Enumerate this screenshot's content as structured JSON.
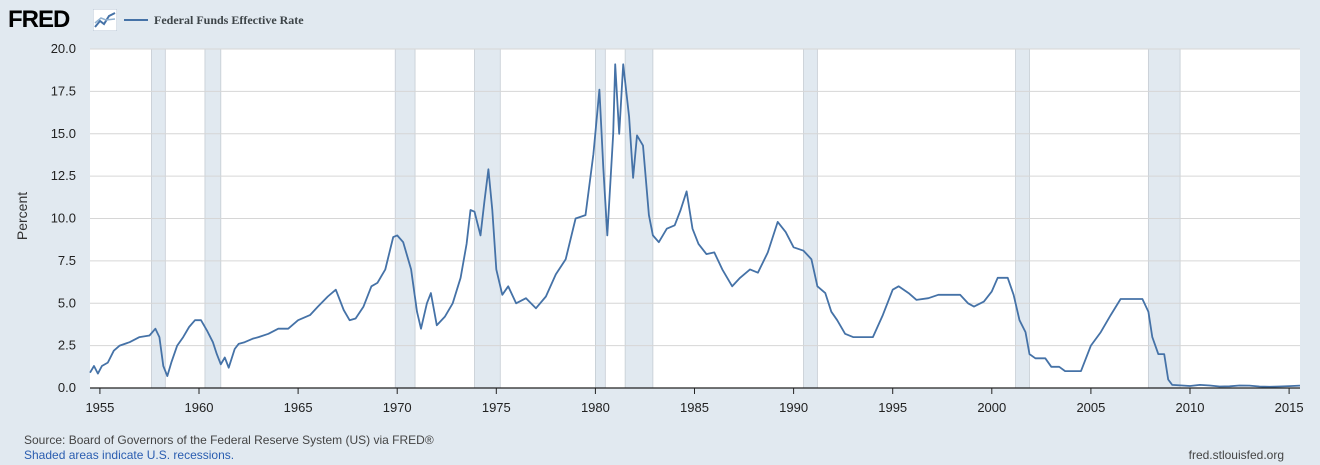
{
  "header": {
    "logo_text": "FRED",
    "logo_icon": "line-chart-icon",
    "series_label": "Federal Funds Effective Rate",
    "series_color": "#4572a7"
  },
  "footer": {
    "source": "Source: Board of Governors of the Federal Reserve System (US) via FRED®",
    "note": "Shaded areas indicate U.S. recessions.",
    "site": "fred.stlouisfed.org"
  },
  "colors": {
    "background": "#e1e9f0",
    "plot_background": "#ffffff",
    "recession_shade": "#e1e9f0",
    "line": "#4572a7"
  },
  "chart_data": {
    "type": "line",
    "title": "",
    "xlabel": "",
    "ylabel": "Percent",
    "xlim": [
      1954.5,
      2015.55
    ],
    "ylim": [
      0,
      20
    ],
    "grid": true,
    "legend_position": "top-left",
    "x_ticks": [
      1955,
      1960,
      1965,
      1970,
      1975,
      1980,
      1985,
      1990,
      1995,
      2000,
      2005,
      2010,
      2015
    ],
    "y_ticks": [
      "0.0",
      "2.5",
      "5.0",
      "7.5",
      "10.0",
      "12.5",
      "15.0",
      "17.5",
      "20.0"
    ],
    "recessions": [
      [
        1957.6,
        1958.3
      ],
      [
        1960.3,
        1961.1
      ],
      [
        1969.9,
        1970.9
      ],
      [
        1973.9,
        1975.2
      ],
      [
        1980.0,
        1980.5
      ],
      [
        1981.5,
        1982.9
      ],
      [
        1990.5,
        1991.2
      ],
      [
        2001.2,
        2001.9
      ],
      [
        2007.9,
        2009.5
      ]
    ],
    "series": [
      {
        "name": "Federal Funds Effective Rate",
        "points": [
          [
            1954.5,
            0.9
          ],
          [
            1954.7,
            1.3
          ],
          [
            1954.9,
            0.85
          ],
          [
            1955.1,
            1.3
          ],
          [
            1955.4,
            1.5
          ],
          [
            1955.7,
            2.2
          ],
          [
            1956.0,
            2.5
          ],
          [
            1956.5,
            2.7
          ],
          [
            1957.0,
            3.0
          ],
          [
            1957.5,
            3.1
          ],
          [
            1957.8,
            3.5
          ],
          [
            1958.0,
            3.0
          ],
          [
            1958.2,
            1.3
          ],
          [
            1958.4,
            0.7
          ],
          [
            1958.6,
            1.5
          ],
          [
            1958.9,
            2.5
          ],
          [
            1959.2,
            3.0
          ],
          [
            1959.5,
            3.6
          ],
          [
            1959.8,
            4.0
          ],
          [
            1960.1,
            4.0
          ],
          [
            1960.4,
            3.4
          ],
          [
            1960.7,
            2.7
          ],
          [
            1960.9,
            2.0
          ],
          [
            1961.1,
            1.4
          ],
          [
            1961.3,
            1.8
          ],
          [
            1961.5,
            1.2
          ],
          [
            1961.8,
            2.3
          ],
          [
            1962.0,
            2.6
          ],
          [
            1962.3,
            2.7
          ],
          [
            1962.7,
            2.9
          ],
          [
            1963.0,
            3.0
          ],
          [
            1963.5,
            3.2
          ],
          [
            1964.0,
            3.5
          ],
          [
            1964.5,
            3.5
          ],
          [
            1965.0,
            4.0
          ],
          [
            1965.6,
            4.3
          ],
          [
            1966.0,
            4.8
          ],
          [
            1966.5,
            5.4
          ],
          [
            1966.9,
            5.8
          ],
          [
            1967.3,
            4.6
          ],
          [
            1967.6,
            4.0
          ],
          [
            1967.9,
            4.1
          ],
          [
            1968.3,
            4.8
          ],
          [
            1968.7,
            6.0
          ],
          [
            1969.0,
            6.2
          ],
          [
            1969.4,
            7.0
          ],
          [
            1969.8,
            8.9
          ],
          [
            1970.0,
            9.0
          ],
          [
            1970.3,
            8.6
          ],
          [
            1970.7,
            7.0
          ],
          [
            1971.0,
            4.5
          ],
          [
            1971.2,
            3.5
          ],
          [
            1971.5,
            5.0
          ],
          [
            1971.7,
            5.6
          ],
          [
            1972.0,
            3.7
          ],
          [
            1972.4,
            4.2
          ],
          [
            1972.8,
            5.0
          ],
          [
            1973.2,
            6.5
          ],
          [
            1973.5,
            8.5
          ],
          [
            1973.7,
            10.5
          ],
          [
            1973.9,
            10.4
          ],
          [
            1974.2,
            9.0
          ],
          [
            1974.4,
            11.0
          ],
          [
            1974.6,
            12.9
          ],
          [
            1974.8,
            10.5
          ],
          [
            1975.0,
            7.0
          ],
          [
            1975.3,
            5.5
          ],
          [
            1975.6,
            6.0
          ],
          [
            1976.0,
            5.0
          ],
          [
            1976.5,
            5.3
          ],
          [
            1977.0,
            4.7
          ],
          [
            1977.5,
            5.4
          ],
          [
            1978.0,
            6.7
          ],
          [
            1978.5,
            7.6
          ],
          [
            1979.0,
            10.0
          ],
          [
            1979.5,
            10.2
          ],
          [
            1979.9,
            13.8
          ],
          [
            1980.2,
            17.6
          ],
          [
            1980.4,
            13.0
          ],
          [
            1980.6,
            9.0
          ],
          [
            1980.9,
            15.0
          ],
          [
            1981.0,
            19.1
          ],
          [
            1981.2,
            15.0
          ],
          [
            1981.4,
            19.1
          ],
          [
            1981.7,
            16.0
          ],
          [
            1981.9,
            12.4
          ],
          [
            1982.1,
            14.9
          ],
          [
            1982.4,
            14.3
          ],
          [
            1982.7,
            10.2
          ],
          [
            1982.9,
            9.0
          ],
          [
            1983.2,
            8.6
          ],
          [
            1983.6,
            9.4
          ],
          [
            1984.0,
            9.6
          ],
          [
            1984.3,
            10.5
          ],
          [
            1984.6,
            11.6
          ],
          [
            1984.9,
            9.4
          ],
          [
            1985.2,
            8.5
          ],
          [
            1985.6,
            7.9
          ],
          [
            1986.0,
            8.0
          ],
          [
            1986.4,
            7.0
          ],
          [
            1986.9,
            6.0
          ],
          [
            1987.3,
            6.5
          ],
          [
            1987.8,
            7.0
          ],
          [
            1988.2,
            6.8
          ],
          [
            1988.7,
            8.0
          ],
          [
            1989.2,
            9.8
          ],
          [
            1989.6,
            9.2
          ],
          [
            1990.0,
            8.3
          ],
          [
            1990.5,
            8.1
          ],
          [
            1990.9,
            7.6
          ],
          [
            1991.2,
            6.0
          ],
          [
            1991.6,
            5.6
          ],
          [
            1991.9,
            4.5
          ],
          [
            1992.2,
            4.0
          ],
          [
            1992.6,
            3.2
          ],
          [
            1993.0,
            3.0
          ],
          [
            1993.5,
            3.0
          ],
          [
            1994.0,
            3.0
          ],
          [
            1994.5,
            4.3
          ],
          [
            1995.0,
            5.8
          ],
          [
            1995.3,
            6.0
          ],
          [
            1995.8,
            5.6
          ],
          [
            1996.2,
            5.2
          ],
          [
            1996.8,
            5.3
          ],
          [
            1997.3,
            5.5
          ],
          [
            1997.9,
            5.5
          ],
          [
            1998.4,
            5.5
          ],
          [
            1998.8,
            5.0
          ],
          [
            1999.1,
            4.8
          ],
          [
            1999.6,
            5.1
          ],
          [
            2000.0,
            5.7
          ],
          [
            2000.3,
            6.5
          ],
          [
            2000.8,
            6.5
          ],
          [
            2001.1,
            5.5
          ],
          [
            2001.4,
            4.0
          ],
          [
            2001.7,
            3.3
          ],
          [
            2001.9,
            2.0
          ],
          [
            2002.2,
            1.75
          ],
          [
            2002.7,
            1.75
          ],
          [
            2003.0,
            1.25
          ],
          [
            2003.4,
            1.25
          ],
          [
            2003.7,
            1.0
          ],
          [
            2004.0,
            1.0
          ],
          [
            2004.5,
            1.0
          ],
          [
            2005.0,
            2.5
          ],
          [
            2005.5,
            3.3
          ],
          [
            2006.0,
            4.3
          ],
          [
            2006.5,
            5.25
          ],
          [
            2007.0,
            5.25
          ],
          [
            2007.6,
            5.25
          ],
          [
            2007.9,
            4.5
          ],
          [
            2008.1,
            3.0
          ],
          [
            2008.4,
            2.0
          ],
          [
            2008.7,
            2.0
          ],
          [
            2008.9,
            0.5
          ],
          [
            2009.1,
            0.18
          ],
          [
            2009.6,
            0.15
          ],
          [
            2010.0,
            0.12
          ],
          [
            2010.5,
            0.18
          ],
          [
            2011.0,
            0.15
          ],
          [
            2011.5,
            0.09
          ],
          [
            2012.0,
            0.1
          ],
          [
            2012.5,
            0.15
          ],
          [
            2013.0,
            0.14
          ],
          [
            2013.5,
            0.09
          ],
          [
            2014.0,
            0.07
          ],
          [
            2014.5,
            0.09
          ],
          [
            2015.0,
            0.11
          ],
          [
            2015.55,
            0.14
          ]
        ]
      }
    ]
  }
}
